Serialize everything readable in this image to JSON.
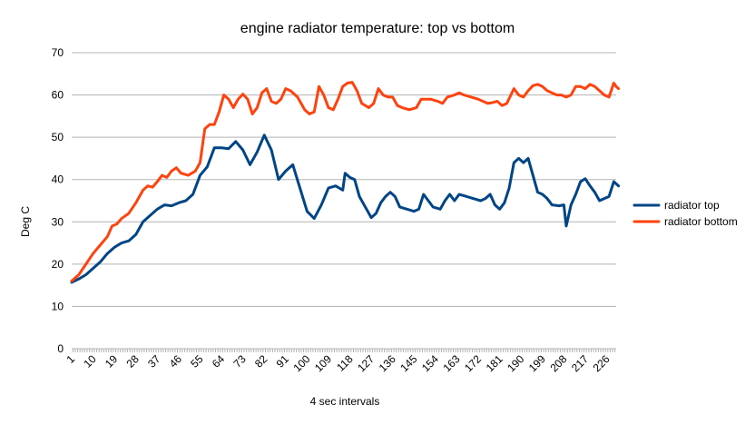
{
  "chart_data": {
    "type": "line",
    "title": "engine radiator temperature: top vs bottom",
    "xlabel": "4 sec intervals",
    "ylabel": "Deg C",
    "ylim": [
      0,
      70
    ],
    "yticks": [
      "0",
      "10",
      "20",
      "30",
      "40",
      "50",
      "60",
      "70"
    ],
    "xlim": [
      1,
      230
    ],
    "xtick_labels": [
      "1",
      "10",
      "19",
      "28",
      "37",
      "46",
      "55",
      "64",
      "73",
      "82",
      "91",
      "100",
      "109",
      "118",
      "127",
      "136",
      "145",
      "154",
      "163",
      "172",
      "181",
      "190",
      "199",
      "208",
      "217",
      "226"
    ],
    "grid": "horizontal major",
    "legend": "right",
    "series": [
      {
        "name": "radiator top",
        "color": "#004586",
        "points": [
          [
            1,
            15.7
          ],
          [
            4,
            16.5
          ],
          [
            7,
            17.5
          ],
          [
            10,
            19
          ],
          [
            13,
            20.5
          ],
          [
            16,
            22.5
          ],
          [
            19,
            24
          ],
          [
            22,
            25
          ],
          [
            25,
            25.5
          ],
          [
            28,
            27
          ],
          [
            31,
            30
          ],
          [
            34,
            31.5
          ],
          [
            37,
            33
          ],
          [
            40,
            34
          ],
          [
            43,
            33.8
          ],
          [
            46,
            34.5
          ],
          [
            49,
            35
          ],
          [
            52,
            36.5
          ],
          [
            55,
            41
          ],
          [
            58,
            43
          ],
          [
            61,
            47.5
          ],
          [
            64,
            47.5
          ],
          [
            67,
            47.3
          ],
          [
            70,
            49
          ],
          [
            73,
            47
          ],
          [
            76,
            43.5
          ],
          [
            79,
            46.5
          ],
          [
            82,
            50.5
          ],
          [
            85,
            47
          ],
          [
            88,
            40
          ],
          [
            91,
            42
          ],
          [
            94,
            43.5
          ],
          [
            97,
            38
          ],
          [
            100,
            32.5
          ],
          [
            103,
            30.8
          ],
          [
            106,
            34
          ],
          [
            109,
            38
          ],
          [
            112,
            38.5
          ],
          [
            115,
            37.5
          ],
          [
            116,
            41.5
          ],
          [
            118,
            40.5
          ],
          [
            120,
            40
          ],
          [
            122,
            36
          ],
          [
            125,
            33
          ],
          [
            127,
            31
          ],
          [
            129,
            32
          ],
          [
            131,
            34.5
          ],
          [
            133,
            36
          ],
          [
            135,
            37
          ],
          [
            137,
            36
          ],
          [
            139,
            33.5
          ],
          [
            142,
            33
          ],
          [
            145,
            32.5
          ],
          [
            147,
            33
          ],
          [
            149,
            36.5
          ],
          [
            151,
            35
          ],
          [
            153,
            33.5
          ],
          [
            156,
            33
          ],
          [
            158,
            35
          ],
          [
            160,
            36.5
          ],
          [
            162,
            35
          ],
          [
            164,
            36.5
          ],
          [
            167,
            36
          ],
          [
            170,
            35.5
          ],
          [
            173,
            35
          ],
          [
            175,
            35.5
          ],
          [
            177,
            36.5
          ],
          [
            179,
            34
          ],
          [
            181,
            33
          ],
          [
            183,
            34.5
          ],
          [
            185,
            38
          ],
          [
            187,
            44
          ],
          [
            189,
            45
          ],
          [
            191,
            44
          ],
          [
            193,
            45
          ],
          [
            195,
            41
          ],
          [
            197,
            37
          ],
          [
            199,
            36.5
          ],
          [
            201,
            35.5
          ],
          [
            203,
            34
          ],
          [
            206,
            33.8
          ],
          [
            208,
            34
          ],
          [
            209,
            29
          ],
          [
            211,
            34
          ],
          [
            213,
            36.5
          ],
          [
            215,
            39.5
          ],
          [
            217,
            40.2
          ],
          [
            219,
            38.5
          ],
          [
            221,
            37
          ],
          [
            223,
            35
          ],
          [
            225,
            35.5
          ],
          [
            227,
            36
          ],
          [
            229,
            39.5
          ],
          [
            230,
            39
          ],
          [
            231,
            38.5
          ]
        ]
      },
      {
        "name": "radiator bottom",
        "color": "#ff420e",
        "points": [
          [
            1,
            16
          ],
          [
            4,
            17.5
          ],
          [
            7,
            20
          ],
          [
            10,
            22.5
          ],
          [
            13,
            24.5
          ],
          [
            16,
            26.5
          ],
          [
            18,
            29
          ],
          [
            20,
            29.5
          ],
          [
            22,
            30.8
          ],
          [
            25,
            32
          ],
          [
            28,
            34.5
          ],
          [
            31,
            37.5
          ],
          [
            33,
            38.5
          ],
          [
            35,
            38.2
          ],
          [
            37,
            39.5
          ],
          [
            39,
            41
          ],
          [
            41,
            40.5
          ],
          [
            43,
            42
          ],
          [
            45,
            42.8
          ],
          [
            47,
            41.5
          ],
          [
            50,
            41
          ],
          [
            53,
            42
          ],
          [
            55,
            44
          ],
          [
            57,
            52
          ],
          [
            59,
            53
          ],
          [
            61,
            53
          ],
          [
            63,
            56
          ],
          [
            65,
            60
          ],
          [
            67,
            59
          ],
          [
            69,
            57
          ],
          [
            71,
            59
          ],
          [
            73,
            60.2
          ],
          [
            75,
            59
          ],
          [
            77,
            55.5
          ],
          [
            79,
            57
          ],
          [
            81,
            60.5
          ],
          [
            83,
            61.5
          ],
          [
            85,
            58.5
          ],
          [
            87,
            58
          ],
          [
            89,
            59
          ],
          [
            91,
            61.5
          ],
          [
            93,
            61
          ],
          [
            96,
            59.5
          ],
          [
            99,
            56.5
          ],
          [
            101,
            55.5
          ],
          [
            103,
            56
          ],
          [
            105,
            62
          ],
          [
            107,
            60
          ],
          [
            109,
            57
          ],
          [
            111,
            56.5
          ],
          [
            113,
            59
          ],
          [
            115,
            62
          ],
          [
            117,
            62.8
          ],
          [
            119,
            63
          ],
          [
            121,
            61
          ],
          [
            123,
            58
          ],
          [
            126,
            57
          ],
          [
            128,
            58
          ],
          [
            130,
            61.5
          ],
          [
            132,
            60
          ],
          [
            134,
            59.5
          ],
          [
            136,
            59.5
          ],
          [
            138,
            57.5
          ],
          [
            140,
            57
          ],
          [
            143,
            56.5
          ],
          [
            146,
            57
          ],
          [
            148,
            59
          ],
          [
            150,
            59
          ],
          [
            152,
            59
          ],
          [
            155,
            58.5
          ],
          [
            157,
            58
          ],
          [
            159,
            59.5
          ],
          [
            162,
            60
          ],
          [
            164,
            60.5
          ],
          [
            166,
            60
          ],
          [
            169,
            59.5
          ],
          [
            172,
            59
          ],
          [
            174,
            58.5
          ],
          [
            176,
            58
          ],
          [
            178,
            58.2
          ],
          [
            180,
            58.5
          ],
          [
            182,
            57.5
          ],
          [
            184,
            58
          ],
          [
            187,
            61.5
          ],
          [
            189,
            60
          ],
          [
            191,
            59.5
          ],
          [
            193,
            61
          ],
          [
            195,
            62.2
          ],
          [
            197,
            62.5
          ],
          [
            199,
            62
          ],
          [
            201,
            61
          ],
          [
            203,
            60.5
          ],
          [
            205,
            60
          ],
          [
            207,
            60
          ],
          [
            209,
            59.5
          ],
          [
            211,
            60
          ],
          [
            213,
            62
          ],
          [
            215,
            62
          ],
          [
            217,
            61.5
          ],
          [
            219,
            62.5
          ],
          [
            221,
            62
          ],
          [
            223,
            61
          ],
          [
            225,
            60
          ],
          [
            227,
            59.5
          ],
          [
            229,
            62.8
          ],
          [
            230,
            62
          ],
          [
            231,
            61.5
          ]
        ]
      }
    ]
  }
}
